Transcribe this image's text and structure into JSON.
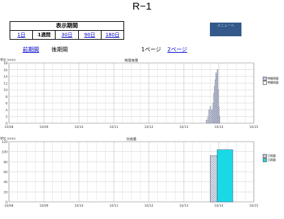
{
  "page_title": "R−1",
  "period": {
    "heading": "表示期間",
    "options": [
      {
        "label": "1日",
        "link": true
      },
      {
        "label": "1週間",
        "link": false
      },
      {
        "label": "30日",
        "link": true
      },
      {
        "label": "90日",
        "link": true
      },
      {
        "label": "180日",
        "link": true
      }
    ]
  },
  "menu_button": "メニューへ",
  "nav": {
    "prev": "前期間",
    "next": "後期間",
    "page1": "1ページ",
    "page2": "2ページ"
  },
  "colors": {
    "hourly_fill": "#bfc6dc",
    "daily_fill": "#19d9e6",
    "link": "#0000cc"
  },
  "chart_data": [
    {
      "type": "bar",
      "title": "時間雨量",
      "ylabel": "単位 (mm)",
      "ylim": [
        0,
        18
      ],
      "yticks": [
        0,
        2,
        4,
        6,
        8,
        10,
        12,
        14,
        16,
        18
      ],
      "x_ticks": [
        "10/08",
        "10/09",
        "10/10",
        "10/11",
        "10/12",
        "10/13",
        "10/14",
        "10/15"
      ],
      "legend": [
        "時間雨量",
        "時間雨量"
      ],
      "bars_day_offset": [
        5.65,
        5.7,
        5.72,
        5.76,
        5.8,
        5.84,
        5.86,
        5.88,
        5.9,
        5.92,
        5.94,
        5.96,
        5.98,
        6.0,
        6.02
      ],
      "values": [
        1,
        2,
        4,
        5,
        4,
        6,
        9,
        11,
        13,
        15,
        14,
        16,
        10,
        5,
        2
      ]
    },
    {
      "type": "bar",
      "title": "日雨量",
      "ylabel": "単位 (mm)",
      "ylim": [
        0,
        120
      ],
      "yticks": [
        0,
        20,
        40,
        60,
        80,
        100,
        120
      ],
      "x_ticks": [
        "10/08",
        "10/09",
        "10/10",
        "10/11",
        "10/12",
        "10/13",
        "10/14",
        "10/15"
      ],
      "legend": [
        "日雨量",
        "日雨量"
      ],
      "categories": [
        "10/13",
        "10/14"
      ],
      "values": [
        92,
        104
      ]
    }
  ]
}
